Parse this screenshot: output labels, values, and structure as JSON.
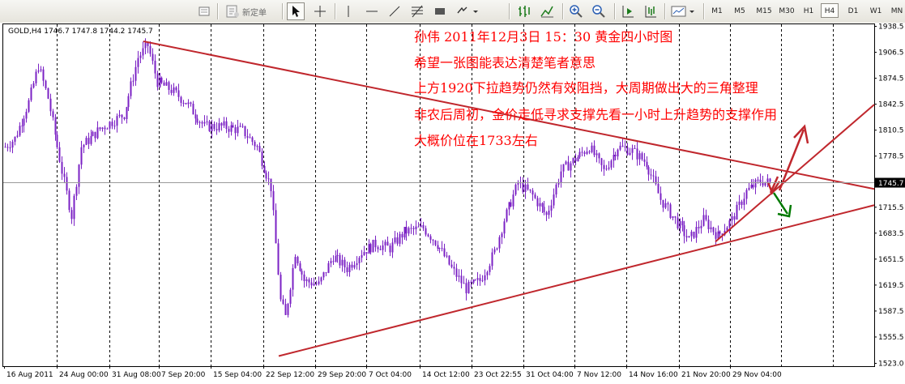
{
  "toolbar": {
    "new_order_label": "新定单",
    "timeframes": [
      "M1",
      "M5",
      "M15",
      "M30",
      "H1",
      "H4",
      "D1",
      "W1",
      "MN"
    ],
    "active_timeframe": "H4",
    "icons": [
      "chart-properties-icon",
      "new-order-icon",
      "cursor-icon",
      "crosshair-icon",
      "vertical-line-icon",
      "horizontal-line-icon",
      "trendline-icon",
      "fibonacci-icon",
      "rectangle-icon",
      "arrows-menu-icon",
      "bar-chart-icon",
      "line-chart-icon",
      "zoom-in-icon",
      "zoom-out-icon",
      "chart-shift-icon",
      "autoscroll-icon",
      "templates-icon"
    ]
  },
  "chart": {
    "header": "GOLD,H4  1746.7 1747.8 1744.2 1745.7",
    "current_price_label": "1745.7",
    "price_ticks": [
      "1938.5",
      "1906.5",
      "1874.5",
      "1842.5",
      "1810.5",
      "1778.5",
      "1745.7",
      "1715.5",
      "1683.5",
      "1651.5",
      "1619.5",
      "1587.5",
      "1555.5",
      "1523.0"
    ],
    "time_ticks": [
      "16 Aug 2011",
      "24 Aug 00:00",
      "31 Aug 08:00",
      "7 Sep 20:00",
      "15 Sep 04:00",
      "22 Sep 12:00",
      "29 Sep 20:00",
      "7 Oct 04:00",
      "14 Oct 12:00",
      "23 Oct 22:55",
      "31 Oct 04:00",
      "7 Nov 12:00",
      "14 Nov 16:00",
      "21 Nov 20:00",
      "29 Nov 04:00"
    ]
  },
  "annotations": [
    "孙伟  2011年12月3日  15：30  黄金四小时图",
    "希望一张图能表达清楚笔者意思",
    "上方1920下拉趋势仍然有效阻挡，大周期做出大的三角整理",
    "非农后周初，金价走低寻求支撑先看一小时上升趋势的支撑作用",
    "大概价位在1733左右"
  ],
  "colors": {
    "candle": "#7b22c4",
    "trendline": "#c0272d",
    "annotation": "#ff0000",
    "down_arrow": "#007a00",
    "grid": "#000000"
  },
  "chart_data": {
    "type": "candlestick",
    "symbol": "GOLD",
    "timeframe": "H4",
    "last_ohlc": {
      "open": 1746.7,
      "high": 1747.8,
      "low": 1744.2,
      "close": 1745.7
    },
    "ylim": [
      1523.0,
      1938.5
    ],
    "x_labels": [
      "16 Aug 2011",
      "24 Aug 00:00",
      "31 Aug 08:00",
      "7 Sep 20:00",
      "15 Sep 04:00",
      "22 Sep 12:00",
      "29 Sep 20:00",
      "7 Oct 04:00",
      "14 Oct 12:00",
      "23 Oct 22:55",
      "31 Oct 04:00",
      "7 Nov 12:00",
      "14 Nov 16:00",
      "21 Nov 20:00",
      "29 Nov 04:00"
    ],
    "y_ticks": [
      1938.5,
      1906.5,
      1874.5,
      1842.5,
      1810.5,
      1778.5,
      1745.7,
      1715.5,
      1683.5,
      1651.5,
      1619.5,
      1587.5,
      1555.5,
      1523.0
    ],
    "price_path": [
      {
        "bar": 0,
        "price": 1790
      },
      {
        "bar": 4,
        "price": 1800
      },
      {
        "bar": 10,
        "price": 1845
      },
      {
        "bar": 14,
        "price": 1890
      },
      {
        "bar": 18,
        "price": 1850
      },
      {
        "bar": 24,
        "price": 1760
      },
      {
        "bar": 28,
        "price": 1705
      },
      {
        "bar": 32,
        "price": 1790
      },
      {
        "bar": 40,
        "price": 1812
      },
      {
        "bar": 50,
        "price": 1830
      },
      {
        "bar": 56,
        "price": 1900
      },
      {
        "bar": 60,
        "price": 1915
      },
      {
        "bar": 64,
        "price": 1870
      },
      {
        "bar": 70,
        "price": 1860
      },
      {
        "bar": 76,
        "price": 1845
      },
      {
        "bar": 84,
        "price": 1815
      },
      {
        "bar": 92,
        "price": 1815
      },
      {
        "bar": 100,
        "price": 1810
      },
      {
        "bar": 106,
        "price": 1790
      },
      {
        "bar": 112,
        "price": 1740
      },
      {
        "bar": 116,
        "price": 1600
      },
      {
        "bar": 118,
        "price": 1580
      },
      {
        "bar": 122,
        "price": 1660
      },
      {
        "bar": 126,
        "price": 1625
      },
      {
        "bar": 132,
        "price": 1620
      },
      {
        "bar": 138,
        "price": 1655
      },
      {
        "bar": 144,
        "price": 1640
      },
      {
        "bar": 150,
        "price": 1660
      },
      {
        "bar": 156,
        "price": 1670
      },
      {
        "bar": 162,
        "price": 1665
      },
      {
        "bar": 168,
        "price": 1685
      },
      {
        "bar": 176,
        "price": 1690
      },
      {
        "bar": 182,
        "price": 1670
      },
      {
        "bar": 188,
        "price": 1640
      },
      {
        "bar": 194,
        "price": 1615
      },
      {
        "bar": 200,
        "price": 1625
      },
      {
        "bar": 206,
        "price": 1660
      },
      {
        "bar": 210,
        "price": 1700
      },
      {
        "bar": 216,
        "price": 1745
      },
      {
        "bar": 222,
        "price": 1730
      },
      {
        "bar": 228,
        "price": 1705
      },
      {
        "bar": 234,
        "price": 1760
      },
      {
        "bar": 240,
        "price": 1775
      },
      {
        "bar": 246,
        "price": 1790
      },
      {
        "bar": 252,
        "price": 1760
      },
      {
        "bar": 258,
        "price": 1790
      },
      {
        "bar": 264,
        "price": 1785
      },
      {
        "bar": 270,
        "price": 1770
      },
      {
        "bar": 276,
        "price": 1725
      },
      {
        "bar": 282,
        "price": 1700
      },
      {
        "bar": 288,
        "price": 1675
      },
      {
        "bar": 294,
        "price": 1700
      },
      {
        "bar": 300,
        "price": 1680
      },
      {
        "bar": 306,
        "price": 1700
      },
      {
        "bar": 312,
        "price": 1735
      },
      {
        "bar": 318,
        "price": 1748
      },
      {
        "bar": 322,
        "price": 1745.7
      }
    ],
    "trendlines": [
      {
        "name": "upper",
        "from": {
          "time": "31 Aug 08:00",
          "price": 1920
        },
        "to": {
          "price": 1738
        }
      },
      {
        "name": "lower",
        "from": {
          "time": "22 Sep 12:00",
          "price": 1532
        },
        "to": {
          "price": 1718
        }
      },
      {
        "name": "short-term-support",
        "from": {
          "time": "21 Nov 20:00",
          "price": 1673
        },
        "to": {
          "price": 1842
        }
      }
    ]
  }
}
